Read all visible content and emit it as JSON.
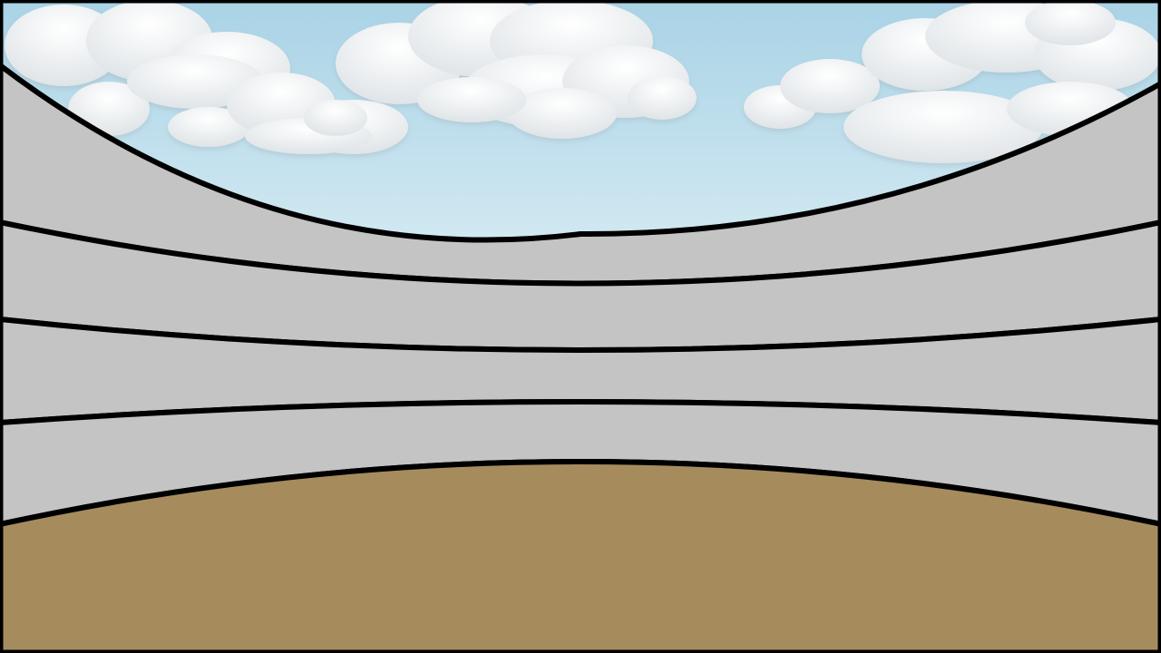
{
  "scene": {
    "type": "arena-background",
    "elements": [
      "sky",
      "clouds",
      "stands",
      "arena-floor"
    ],
    "stand_tiers": 4,
    "colors": {
      "sky_top": "#a9d3e6",
      "sky_bottom": "#d6ebf3",
      "cloud": "#f3f5f6",
      "cloud_shade": "#dfe4e7",
      "stands": "#c4c4c4",
      "floor": "#a68c5d",
      "outline": "#000000"
    }
  }
}
